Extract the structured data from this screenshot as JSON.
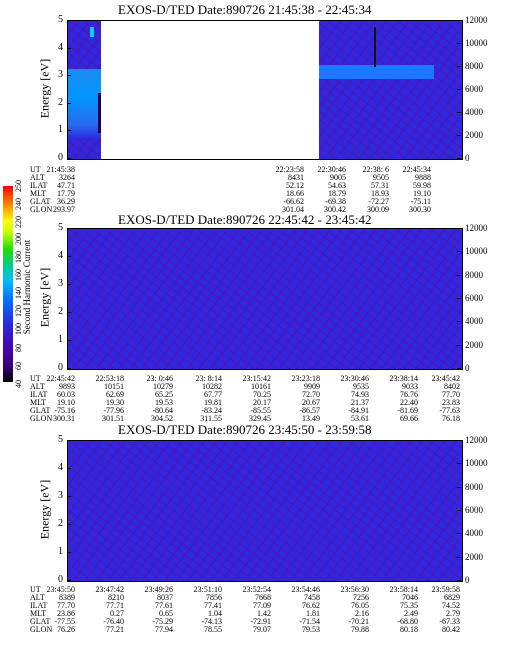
{
  "colorbar": {
    "label": "Second Harmonic Current",
    "ticks": [
      "40",
      "60",
      "80",
      "100",
      "120",
      "140",
      "160",
      "180",
      "200",
      "220",
      "240",
      "250"
    ]
  },
  "chart_data": [
    {
      "type": "heatmap",
      "title": "EXOS-D/TED  Date:890726  21:45:38 - 22:45:34",
      "ylabel": "Energy [eV]",
      "ylabel_right": "Temperature [K]",
      "ylim": [
        0,
        5
      ],
      "yticks": [
        "0",
        "1",
        "2",
        "3",
        "4",
        "5"
      ],
      "ylim_right": [
        0,
        12000
      ],
      "yticks_right": [
        "0",
        "2000",
        "4000",
        "6000",
        "8000",
        "10000",
        "12000"
      ],
      "data_gap": {
        "from": "21:45:38",
        "to": "22:23:58"
      },
      "table": {
        "row_labels": [
          "UT",
          "ALT",
          "ILAT",
          "MLT",
          "GLAT",
          "GLON"
        ],
        "columns": [
          [
            "21:45:38",
            "3264",
            "47.71",
            "17.79",
            "36.29",
            "293.97"
          ],
          [
            "22:23:58",
            "8431",
            "52.12",
            "18.66",
            "-66.62",
            "301.04"
          ],
          [
            "22:30:46",
            "9005",
            "54.63",
            "18.79",
            "-69.38",
            "300.42"
          ],
          [
            "22:38: 6",
            "9505",
            "57.31",
            "18.93",
            "-72.27",
            "300.09"
          ],
          [
            "22:45:34",
            "9888",
            "59.98",
            "19.10",
            "-75.11",
            "300.30"
          ]
        ]
      }
    },
    {
      "type": "heatmap",
      "title": "EXOS-D/TED  Date:890726  22:45:42 - 23:45:42",
      "ylabel": "Energy [eV]",
      "ylabel_right": "Temperature [K]",
      "ylim": [
        0,
        5
      ],
      "yticks": [
        "0",
        "1",
        "2",
        "3",
        "4",
        "5"
      ],
      "ylim_right": [
        0,
        12000
      ],
      "yticks_right": [
        "0",
        "2000",
        "4000",
        "6000",
        "8000",
        "10000",
        "12000"
      ],
      "table": {
        "row_labels": [
          "UT",
          "ALT",
          "ILAT",
          "MLT",
          "GLAT",
          "GLON"
        ],
        "columns": [
          [
            "22:45:42",
            "9893",
            "60.03",
            "19.10",
            "-75.16",
            "300.31"
          ],
          [
            "22:53:18",
            "10151",
            "62.69",
            "19.30",
            "-77.96",
            "301.51"
          ],
          [
            "23: 0:46",
            "10279",
            "65.25",
            "19.53",
            "-80.64",
            "304.52"
          ],
          [
            "23: 8:14",
            "10282",
            "67.77",
            "19.81",
            "-83.24",
            "311.55"
          ],
          [
            "23:15:42",
            "10161",
            "70.25",
            "20.17",
            "-85.55",
            "329.45"
          ],
          [
            "23:23:18",
            "9909",
            "72.70",
            "20.67",
            "-86.57",
            "13.49"
          ],
          [
            "23:30:46",
            "9535",
            "74.93",
            "21.37",
            "-84.91",
            "53.61"
          ],
          [
            "23:38:14",
            "9033",
            "76.76",
            "22.40",
            "-81.69",
            "69.66"
          ],
          [
            "23:45:42",
            "8402",
            "77.70",
            "23.83",
            "-77.63",
            "76.18"
          ]
        ]
      }
    },
    {
      "type": "heatmap",
      "title": "EXOS-D/TED  Date:890726  23:45:50 - 23:59:58",
      "ylabel": "Energy [eV]",
      "ylabel_right": "Temperature [K]",
      "ylim": [
        0,
        5
      ],
      "yticks": [
        "0",
        "1",
        "2",
        "3",
        "4",
        "5"
      ],
      "ylim_right": [
        0,
        12000
      ],
      "yticks_right": [
        "0",
        "2000",
        "4000",
        "6000",
        "8000",
        "10000",
        "12000"
      ],
      "table": {
        "row_labels": [
          "UT",
          "ALT",
          "ILAT",
          "MLT",
          "GLAT",
          "GLON"
        ],
        "columns": [
          [
            "23:45:50",
            "8389",
            "77.70",
            "23.86",
            "-77.55",
            "76.26"
          ],
          [
            "23:47:42",
            "8210",
            "77.71",
            "0.27",
            "-76.40",
            "77.21"
          ],
          [
            "23:49:26",
            "8037",
            "77.61",
            "0.65",
            "-75.29",
            "77.94"
          ],
          [
            "23:51:10",
            "7856",
            "77.41",
            "1.04",
            "-74.13",
            "78.55"
          ],
          [
            "23:52:54",
            "7668",
            "77.09",
            "1.42",
            "-72.91",
            "79.07"
          ],
          [
            "23:54:46",
            "7458",
            "76.62",
            "1.81",
            "-71.54",
            "79.53"
          ],
          [
            "23:56:30",
            "7256",
            "76.05",
            "2.16",
            "-70.21",
            "79.88"
          ],
          [
            "23:58:14",
            "7046",
            "75.35",
            "2.49",
            "-68.80",
            "80.18"
          ],
          [
            "23:59:58",
            "6829",
            "74.52",
            "2.79",
            "-67.33",
            "80.42"
          ]
        ]
      }
    }
  ]
}
